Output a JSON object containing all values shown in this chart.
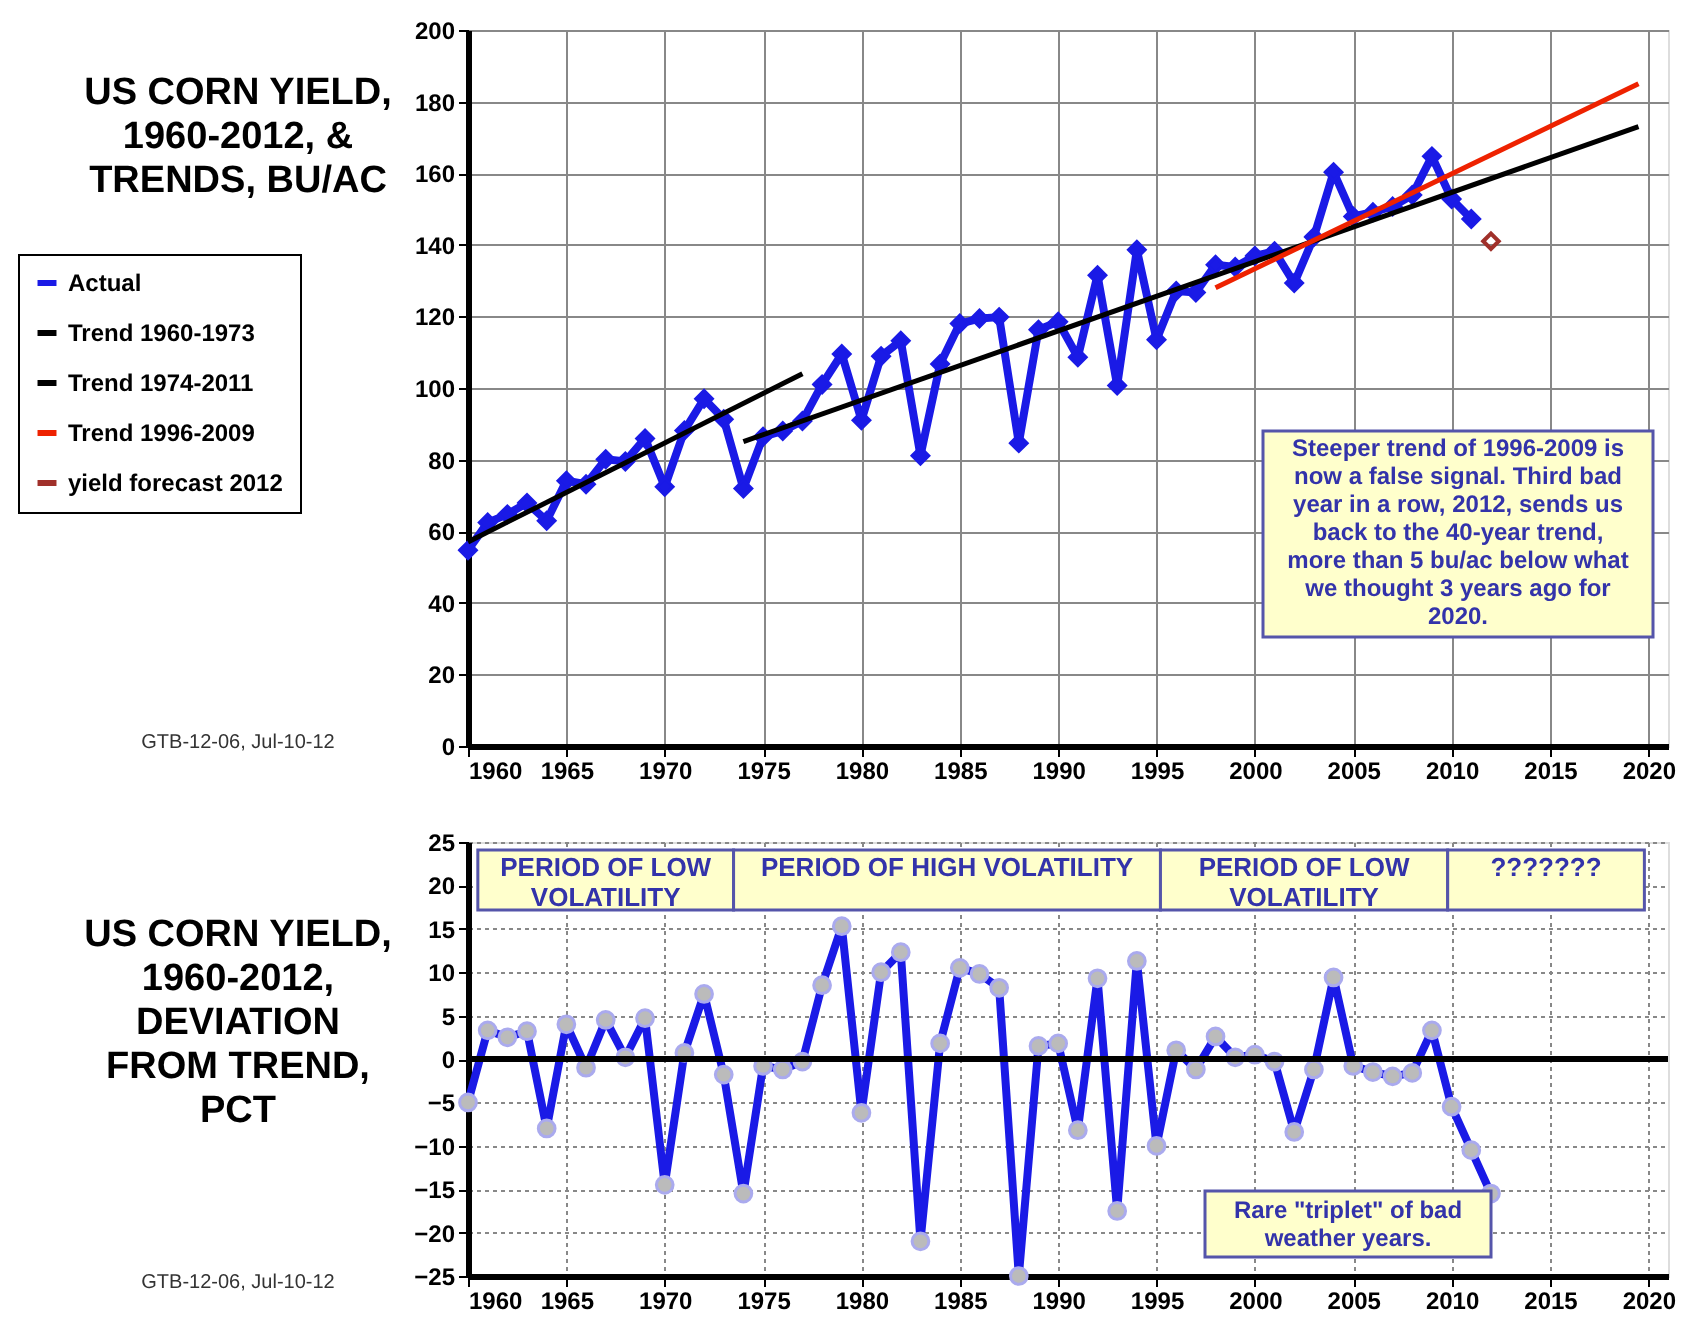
{
  "chart_data": [
    {
      "type": "line",
      "title": "US CORN YIELD,\n1960-2012, &\nTRENDS, BU/AC",
      "xlim": [
        1960,
        2021
      ],
      "xticks": [
        1960,
        1965,
        1970,
        1975,
        1980,
        1985,
        1990,
        1995,
        2000,
        2005,
        2010,
        2015,
        2020
      ],
      "ylim": [
        0,
        200
      ],
      "yticks": [
        0,
        20,
        40,
        60,
        80,
        100,
        120,
        140,
        160,
        180,
        200
      ],
      "grid": true,
      "legend": "left",
      "series": [
        {
          "name": "Actual",
          "type": "line",
          "marker": "diamond",
          "color": "#1a1ae6",
          "x": [
            1960,
            1961,
            1962,
            1963,
            1964,
            1965,
            1966,
            1967,
            1968,
            1969,
            1970,
            1971,
            1972,
            1973,
            1974,
            1975,
            1976,
            1977,
            1978,
            1979,
            1980,
            1981,
            1982,
            1983,
            1984,
            1985,
            1986,
            1987,
            1988,
            1989,
            1990,
            1991,
            1992,
            1993,
            1994,
            1995,
            1996,
            1997,
            1998,
            1999,
            2000,
            2001,
            2002,
            2003,
            2004,
            2005,
            2006,
            2007,
            2008,
            2009,
            2010,
            2011
          ],
          "values": [
            54.7,
            62.4,
            64.7,
            67.9,
            62.9,
            74.1,
            73.1,
            80.1,
            79.5,
            85.9,
            72.4,
            88.1,
            97.0,
            91.3,
            71.9,
            86.4,
            88.0,
            90.8,
            101.0,
            109.5,
            91.0,
            108.9,
            113.2,
            81.1,
            106.7,
            118.0,
            119.4,
            119.8,
            84.6,
            116.3,
            118.5,
            108.6,
            131.5,
            100.7,
            138.6,
            113.5,
            127.1,
            126.7,
            134.4,
            133.8,
            136.9,
            138.2,
            129.3,
            142.2,
            160.3,
            147.9,
            149.1,
            150.7,
            153.9,
            164.7,
            152.8,
            147.2
          ]
        },
        {
          "name": "Trend 1960-1973",
          "type": "line",
          "marker": "none",
          "color": "#000000",
          "x": [
            1960,
            1977
          ],
          "values": [
            57,
            104
          ]
        },
        {
          "name": "Trend 1974-2011",
          "type": "line",
          "marker": "none",
          "color": "#000000",
          "x": [
            1974,
            2019.5
          ],
          "values": [
            85,
            173
          ]
        },
        {
          "name": "Trend 1996-2009",
          "type": "line",
          "marker": "none",
          "color": "#ee2200",
          "x": [
            1998,
            2019.5
          ],
          "values": [
            128,
            185
          ]
        },
        {
          "name": "yield forecast 2012",
          "type": "scatter",
          "marker": "diamond",
          "color": "#a0302a",
          "x": [
            2012
          ],
          "values": [
            141
          ]
        }
      ],
      "annotations": [
        "Steeper trend of 1996-2009 is\nnow a false signal.  Third bad\nyear in a row, 2012, sends us\nback to the 40-year trend,\nmore than 5 bu/ac below what\nwe thought 3 years ago for\n2020.",
        "GTB-12-06, Jul-10-12"
      ]
    },
    {
      "type": "line",
      "title": "US CORN YIELD,\n1960-2012,\nDEVIATION\nFROM TREND,\nPCT",
      "xlim": [
        1960,
        2021
      ],
      "xticks": [
        1960,
        1965,
        1970,
        1975,
        1980,
        1985,
        1990,
        1995,
        2000,
        2005,
        2010,
        2015,
        2020
      ],
      "ylim": [
        -25,
        25
      ],
      "yticks": [
        -25,
        -20,
        -15,
        -10,
        -5,
        0,
        5,
        10,
        15,
        20,
        25
      ],
      "grid": true,
      "marker": "circle",
      "series": [
        {
          "color": "#1a1ae6",
          "x": [
            1960,
            1961,
            1962,
            1963,
            1964,
            1965,
            1966,
            1967,
            1968,
            1969,
            1970,
            1971,
            1972,
            1973,
            1974,
            1975,
            1976,
            1977,
            1978,
            1979,
            1980,
            1981,
            1982,
            1983,
            1984,
            1985,
            1986,
            1987,
            1988,
            1989,
            1990,
            1991,
            1992,
            1993,
            1994,
            1995,
            1996,
            1997,
            1998,
            1999,
            2000,
            2001,
            2002,
            2003,
            2004,
            2005,
            2006,
            2007,
            2008,
            2009,
            2010,
            2011,
            2012
          ],
          "values": [
            -5,
            3.3,
            2.5,
            3.2,
            -8,
            4,
            -1,
            4.5,
            0.2,
            4.7,
            -14.5,
            0.7,
            7.5,
            -1.8,
            -15.5,
            -0.8,
            -1.2,
            -0.3,
            8.5,
            15.3,
            -6.2,
            10,
            12.3,
            -21,
            1.8,
            10.5,
            9.8,
            8.2,
            -25,
            1.5,
            1.8,
            -8.2,
            9.3,
            -17.5,
            11.3,
            -10,
            1,
            -1.2,
            2.6,
            0.2,
            0.5,
            -0.3,
            -8.4,
            -1.2,
            9.4,
            -0.8,
            -1.5,
            -2,
            -1.6,
            3.3,
            -5.5,
            -10.5,
            -15.5
          ]
        }
      ],
      "ref_lines": [
        {
          "axis": "y",
          "value": 0,
          "color": "#000000"
        }
      ],
      "bands": [
        {
          "axis": "x",
          "from": 1960.5,
          "to": 1973.5,
          "label": "PERIOD OF LOW\nVOLATILITY",
          "color": "#ffffcc"
        },
        {
          "axis": "x",
          "from": 1973.5,
          "to": 1995.2,
          "label": "PERIOD OF HIGH VOLATILITY",
          "color": "#ffffcc"
        },
        {
          "axis": "x",
          "from": 1995.2,
          "to": 2009.8,
          "label": "PERIOD OF LOW\nVOLATILITY",
          "color": "#ffffcc"
        },
        {
          "axis": "x",
          "from": 2009.8,
          "to": 2019.8,
          "label": "???????",
          "color": "#ffffcc"
        }
      ],
      "annotations": [
        "Rare \"triplet\" of bad\nweather years.",
        "GTB-12-06, Jul-10-12"
      ]
    }
  ]
}
